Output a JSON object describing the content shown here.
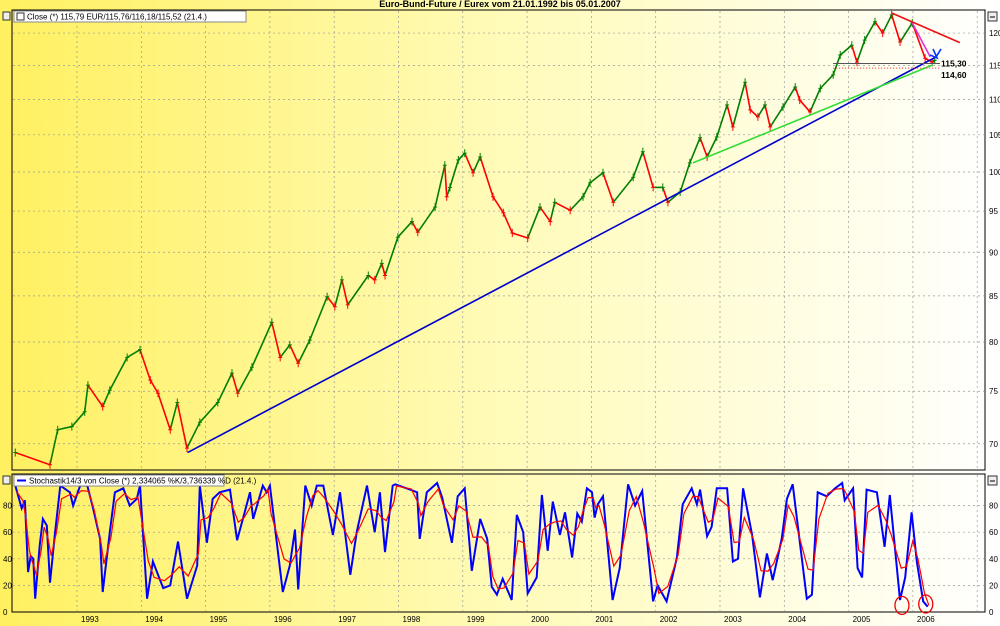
{
  "title": "Euro-Bund-Future / Eurex vom 21.01.1992 bis 05.01.2007",
  "colors": {
    "up": "#008000",
    "down": "#ff0000",
    "stoch_k": "#0000ff",
    "stoch_d": "#ff0000",
    "bg_left": "#fff060",
    "bg_right": "#ffffff"
  },
  "chart_data": [
    {
      "type": "line",
      "legend": "Close (*) 115,79 EUR/115,76/116,18/115,52 (21.4.)",
      "y_scale": "log",
      "ylim": [
        67.5,
        124
      ],
      "xlim": [
        1992.0,
        2007.1
      ],
      "grid": true,
      "y_ticks": [
        70,
        75,
        80,
        85,
        90,
        95,
        100,
        105,
        110,
        115,
        120
      ],
      "points": [
        [
          1992.04,
          69.2
        ],
        [
          1992.58,
          68.1
        ],
        [
          1992.7,
          71.3
        ],
        [
          1992.92,
          71.6
        ],
        [
          1993.12,
          73.0
        ],
        [
          1993.17,
          75.6
        ],
        [
          1993.4,
          73.5
        ],
        [
          1993.51,
          75.1
        ],
        [
          1993.78,
          78.4
        ],
        [
          1993.98,
          79.2
        ],
        [
          1994.14,
          76.1
        ],
        [
          1994.26,
          74.8
        ],
        [
          1994.45,
          71.3
        ],
        [
          1994.56,
          73.9
        ],
        [
          1994.71,
          69.6
        ],
        [
          1994.91,
          72.0
        ],
        [
          1995.19,
          73.9
        ],
        [
          1995.41,
          76.8
        ],
        [
          1995.5,
          74.8
        ],
        [
          1995.72,
          77.4
        ],
        [
          1996.03,
          82.1
        ],
        [
          1996.16,
          78.4
        ],
        [
          1996.31,
          79.7
        ],
        [
          1996.44,
          77.8
        ],
        [
          1996.62,
          80.2
        ],
        [
          1996.89,
          84.9
        ],
        [
          1997.01,
          83.8
        ],
        [
          1997.12,
          86.8
        ],
        [
          1997.21,
          84.0
        ],
        [
          1997.53,
          87.3
        ],
        [
          1997.63,
          86.8
        ],
        [
          1997.74,
          88.7
        ],
        [
          1997.79,
          87.3
        ],
        [
          1997.99,
          91.8
        ],
        [
          1998.21,
          93.7
        ],
        [
          1998.3,
          92.4
        ],
        [
          1998.57,
          95.5
        ],
        [
          1998.72,
          100.9
        ],
        [
          1998.75,
          96.8
        ],
        [
          1998.8,
          98.0
        ],
        [
          1998.93,
          101.6
        ],
        [
          1999.03,
          102.5
        ],
        [
          1999.16,
          99.9
        ],
        [
          1999.27,
          102.0
        ],
        [
          1999.47,
          96.8
        ],
        [
          1999.63,
          94.8
        ],
        [
          1999.77,
          92.3
        ],
        [
          2000.01,
          91.7
        ],
        [
          2000.2,
          95.5
        ],
        [
          2000.36,
          93.7
        ],
        [
          2000.43,
          96.1
        ],
        [
          2000.67,
          95.1
        ],
        [
          2000.87,
          96.8
        ],
        [
          2000.98,
          98.6
        ],
        [
          2001.18,
          99.9
        ],
        [
          2001.34,
          96.1
        ],
        [
          2001.65,
          99.3
        ],
        [
          2001.8,
          102.7
        ],
        [
          2001.96,
          98.0
        ],
        [
          2002.11,
          98.0
        ],
        [
          2002.19,
          96.1
        ],
        [
          2002.38,
          97.4
        ],
        [
          2002.53,
          101.2
        ],
        [
          2002.69,
          104.6
        ],
        [
          2002.8,
          102.0
        ],
        [
          2002.95,
          104.7
        ],
        [
          2003.11,
          109.2
        ],
        [
          2003.2,
          106.1
        ],
        [
          2003.39,
          112.5
        ],
        [
          2003.47,
          108.5
        ],
        [
          2003.59,
          107.5
        ],
        [
          2003.7,
          109.2
        ],
        [
          2003.78,
          106.1
        ],
        [
          2003.98,
          108.9
        ],
        [
          2004.17,
          111.8
        ],
        [
          2004.24,
          109.9
        ],
        [
          2004.4,
          108.2
        ],
        [
          2004.56,
          111.6
        ],
        [
          2004.76,
          113.6
        ],
        [
          2004.87,
          116.6
        ],
        [
          2005.05,
          118.1
        ],
        [
          2005.13,
          115.5
        ],
        [
          2005.25,
          118.9
        ],
        [
          2005.41,
          121.8
        ],
        [
          2005.53,
          120.0
        ],
        [
          2005.67,
          122.9
        ],
        [
          2005.8,
          118.6
        ],
        [
          2005.99,
          121.6
        ],
        [
          2006.19,
          116.1
        ],
        [
          2006.3,
          115.5
        ],
        [
          2006.34,
          115.8
        ]
      ],
      "trendlines": [
        {
          "color": "#0000cc",
          "from": [
            1994.72,
            69.2
          ],
          "to": [
            2006.36,
            116.3
          ]
        },
        {
          "color": "#33dd33",
          "from": [
            2002.58,
            101.2
          ],
          "to": [
            2006.31,
            115.1
          ]
        },
        {
          "color": "#ee1111",
          "from": [
            2005.67,
            123.2
          ],
          "to": [
            2006.73,
            118.5
          ]
        },
        {
          "color": "#dd33dd",
          "from": [
            2005.99,
            121.6
          ],
          "to": [
            2006.27,
            116.3
          ]
        }
      ],
      "levels": [
        {
          "value": 115.3,
          "label": "115,30",
          "color": "#555555",
          "style": "solid",
          "from": 2004.76
        },
        {
          "value": 114.6,
          "label": "114,60",
          "color": "#ee2222",
          "style": "dotted",
          "from": 2004.76
        }
      ]
    },
    {
      "type": "line",
      "legend": "Stochastik14/3 von Close (*) 2,334065 %K/3,736339 %D (21.4.)",
      "ylim": [
        0,
        100
      ],
      "y_ticks": [
        0,
        20,
        40,
        60,
        80
      ],
      "x_ticks": [
        "1993",
        "1994",
        "1995",
        "1996",
        "1997",
        "1998",
        "1999",
        "2000",
        "2001",
        "2002",
        "2003",
        "2004",
        "2005",
        "2006"
      ],
      "series": [
        {
          "key": "%K",
          "color": "#0000ff"
        },
        {
          "key": "%D",
          "color": "#ff0000"
        }
      ],
      "k_points": [
        [
          1992.04,
          95
        ],
        [
          1992.14,
          78
        ],
        [
          1992.19,
          84
        ],
        [
          1992.24,
          30
        ],
        [
          1992.28,
          42
        ],
        [
          1992.32,
          40
        ],
        [
          1992.35,
          10
        ],
        [
          1992.42,
          50
        ],
        [
          1992.47,
          70
        ],
        [
          1992.53,
          65
        ],
        [
          1992.58,
          22
        ],
        [
          1992.66,
          60
        ],
        [
          1992.74,
          95
        ],
        [
          1992.89,
          90
        ],
        [
          1992.94,
          80
        ],
        [
          1993.05,
          95
        ],
        [
          1993.16,
          95
        ],
        [
          1993.25,
          78
        ],
        [
          1993.36,
          55
        ],
        [
          1993.4,
          15
        ],
        [
          1993.51,
          60
        ],
        [
          1993.59,
          90
        ],
        [
          1993.72,
          93
        ],
        [
          1993.82,
          80
        ],
        [
          1993.93,
          85
        ],
        [
          1993.98,
          95
        ],
        [
          1994.09,
          10
        ],
        [
          1994.18,
          38
        ],
        [
          1994.34,
          18
        ],
        [
          1994.45,
          20
        ],
        [
          1994.57,
          53
        ],
        [
          1994.71,
          10
        ],
        [
          1994.87,
          35
        ],
        [
          1994.91,
          95
        ],
        [
          1995.02,
          52
        ],
        [
          1995.11,
          85
        ],
        [
          1995.22,
          90
        ],
        [
          1995.38,
          92
        ],
        [
          1995.49,
          54
        ],
        [
          1995.58,
          70
        ],
        [
          1995.69,
          90
        ],
        [
          1995.74,
          70
        ],
        [
          1995.89,
          95
        ],
        [
          1995.95,
          90
        ],
        [
          1996.0,
          95
        ],
        [
          1996.2,
          15
        ],
        [
          1996.31,
          35
        ],
        [
          1996.39,
          62
        ],
        [
          1996.44,
          17
        ],
        [
          1996.55,
          95
        ],
        [
          1996.65,
          80
        ],
        [
          1996.73,
          95
        ],
        [
          1996.83,
          95
        ],
        [
          1996.98,
          58
        ],
        [
          1997.09,
          90
        ],
        [
          1997.25,
          28
        ],
        [
          1997.35,
          60
        ],
        [
          1997.51,
          95
        ],
        [
          1997.63,
          60
        ],
        [
          1997.71,
          90
        ],
        [
          1997.79,
          45
        ],
        [
          1997.91,
          95
        ],
        [
          1997.95,
          96
        ],
        [
          1998.18,
          92
        ],
        [
          1998.29,
          90
        ],
        [
          1998.33,
          55
        ],
        [
          1998.44,
          90
        ],
        [
          1998.6,
          97
        ],
        [
          1998.68,
          86
        ],
        [
          1998.83,
          52
        ],
        [
          1998.92,
          87
        ],
        [
          1999.03,
          93
        ],
        [
          1999.14,
          31
        ],
        [
          1999.27,
          70
        ],
        [
          1999.38,
          55
        ],
        [
          1999.45,
          19
        ],
        [
          1999.53,
          13
        ],
        [
          1999.62,
          25
        ],
        [
          1999.76,
          9
        ],
        [
          1999.84,
          73
        ],
        [
          1999.94,
          60
        ],
        [
          2000.01,
          14
        ],
        [
          2000.15,
          26
        ],
        [
          2000.23,
          88
        ],
        [
          2000.32,
          46
        ],
        [
          2000.4,
          83
        ],
        [
          2000.51,
          58
        ],
        [
          2000.59,
          75
        ],
        [
          2000.7,
          41
        ],
        [
          2000.78,
          74
        ],
        [
          2000.85,
          68
        ],
        [
          2000.93,
          93
        ],
        [
          2001.01,
          90
        ],
        [
          2001.05,
          71
        ],
        [
          2001.1,
          81
        ],
        [
          2001.18,
          87
        ],
        [
          2001.33,
          9
        ],
        [
          2001.44,
          33
        ],
        [
          2001.57,
          96
        ],
        [
          2001.68,
          80
        ],
        [
          2001.79,
          91
        ],
        [
          2001.96,
          8
        ],
        [
          2002.03,
          20
        ],
        [
          2002.17,
          8
        ],
        [
          2002.33,
          41
        ],
        [
          2002.42,
          81
        ],
        [
          2002.56,
          93
        ],
        [
          2002.64,
          81
        ],
        [
          2002.69,
          92
        ],
        [
          2002.8,
          57
        ],
        [
          2002.87,
          64
        ],
        [
          2002.95,
          93
        ],
        [
          2003.11,
          93
        ],
        [
          2003.2,
          38
        ],
        [
          2003.28,
          40
        ],
        [
          2003.36,
          93
        ],
        [
          2003.5,
          58
        ],
        [
          2003.62,
          11
        ],
        [
          2003.73,
          44
        ],
        [
          2003.82,
          24
        ],
        [
          2003.96,
          55
        ],
        [
          2004.04,
          85
        ],
        [
          2004.13,
          96
        ],
        [
          2004.35,
          10
        ],
        [
          2004.43,
          13
        ],
        [
          2004.52,
          90
        ],
        [
          2004.66,
          87
        ],
        [
          2004.79,
          93
        ],
        [
          2004.9,
          97
        ],
        [
          2004.94,
          84
        ],
        [
          2005.07,
          93
        ],
        [
          2005.14,
          33
        ],
        [
          2005.21,
          26
        ],
        [
          2005.28,
          92
        ],
        [
          2005.44,
          90
        ],
        [
          2005.56,
          49
        ],
        [
          2005.64,
          88
        ],
        [
          2005.8,
          9
        ],
        [
          2005.88,
          26
        ],
        [
          2005.98,
          75
        ],
        [
          2006.06,
          38
        ],
        [
          2006.16,
          8
        ],
        [
          2006.23,
          4
        ]
      ],
      "annotations": [
        {
          "type": "circle",
          "color": "#ee0000",
          "at": [
            2005.83,
            5
          ]
        },
        {
          "type": "circle",
          "color": "#ee0000",
          "at": [
            2006.2,
            6
          ]
        }
      ]
    }
  ]
}
